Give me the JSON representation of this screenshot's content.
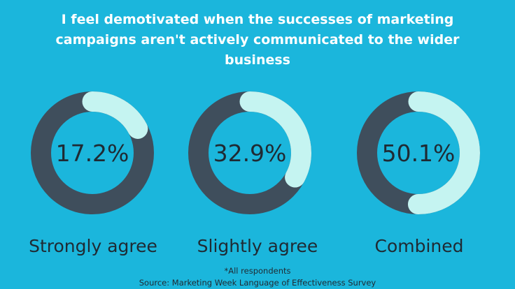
{
  "title": "I feel demotivated when the successes of marketing campaigns aren't actively communicated to the wider business",
  "chart_data": {
    "type": "pie",
    "variant": "donut",
    "title": "I feel demotivated when the successes of marketing campaigns aren't actively communicated to the wider business",
    "categories": [
      "Strongly agree",
      "Slightly agree",
      "Combined"
    ],
    "values": [
      17.2,
      32.9,
      50.1
    ],
    "value_labels": [
      "17.2%",
      "32.9%",
      "50.1%"
    ],
    "unit": "%",
    "colors": {
      "track": "#3f4e5c",
      "fill": "#c5f4f1",
      "background": "#1bb6dc",
      "text": "#1f2a33"
    }
  },
  "footnote": "*All respondents",
  "source": "Source: Marketing Week Language of Effectiveness Survey"
}
